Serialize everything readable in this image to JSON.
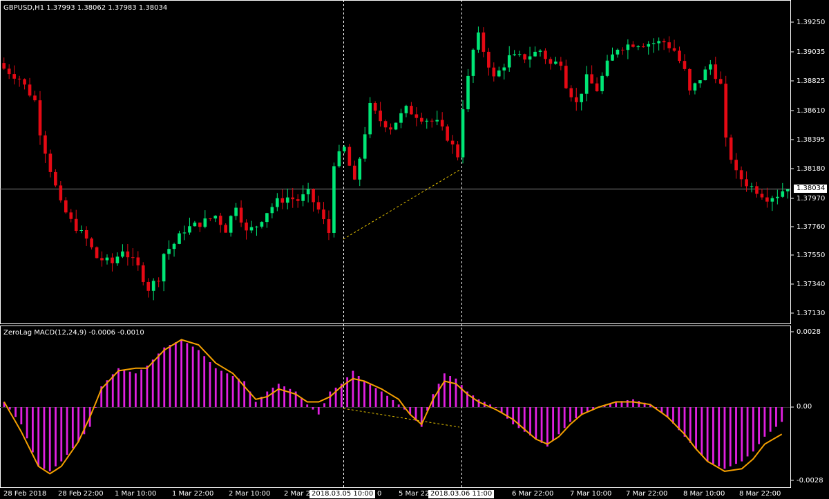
{
  "main_panel": {
    "symbol_label": "GBPUSD,H1  1.37993 1.38062 1.37983 1.38034",
    "current_price": "1.38034",
    "price_axis": [
      "1.39250",
      "1.39035",
      "1.38825",
      "1.38610",
      "1.38395",
      "1.38180",
      "1.37970",
      "1.37760",
      "1.37550",
      "1.37340",
      "1.37130"
    ]
  },
  "indicator_panel": {
    "label": "ZeroLag MACD(12,24,9) -0.0006 -0.0010",
    "axis": [
      "0.0028",
      "0.00",
      "-0.0028"
    ]
  },
  "time_axis": [
    "28 Feb 2018",
    "28 Feb 22:00",
    "1 Mar 10:00",
    "1 Mar 22:00",
    "2 Mar 10:00",
    "2 Mar 2",
    "5 Mar 22:00",
    "6 Mar 22:00",
    "7 Mar 10:00",
    "7 Mar 22:00",
    "8 Mar 10:00",
    "8 Mar 22:00"
  ],
  "time_axis_fragment": "0",
  "crosshair_labels": [
    "2018.03.05 10:00",
    "2018.03.06 11:00"
  ],
  "colors": {
    "background": "#000000",
    "bull_candle": "#00e676",
    "bear_candle": "#e50914",
    "histogram": "#e020e0",
    "signal_line": "#f5a000",
    "trendline": "#e5c100",
    "grid_line": "#ffffff"
  },
  "chart_data": [
    {
      "type": "candlestick",
      "title": "GBPUSD,H1",
      "ylim": [
        1.3705,
        1.3935
      ],
      "candle_count": 153,
      "close_path": [
        [
          0,
          1.3887
        ],
        [
          3,
          1.388
        ],
        [
          6,
          1.3864
        ],
        [
          7,
          1.3842
        ],
        [
          9,
          1.3815
        ],
        [
          11,
          1.379
        ],
        [
          13,
          1.3778
        ],
        [
          16,
          1.3765
        ],
        [
          18,
          1.3752
        ],
        [
          21,
          1.3748
        ],
        [
          23,
          1.3758
        ],
        [
          26,
          1.3745
        ],
        [
          28,
          1.373
        ],
        [
          30,
          1.3738
        ],
        [
          31,
          1.3755
        ],
        [
          33,
          1.3762
        ],
        [
          35,
          1.3772
        ],
        [
          37,
          1.3775
        ],
        [
          39,
          1.3778
        ],
        [
          41,
          1.3782
        ],
        [
          43,
          1.3772
        ],
        [
          45,
          1.379
        ],
        [
          47,
          1.377
        ],
        [
          49,
          1.3775
        ],
        [
          51,
          1.3785
        ],
        [
          53,
          1.3792
        ],
        [
          55,
          1.3795
        ],
        [
          57,
          1.3793
        ],
        [
          59,
          1.3798
        ],
        [
          61,
          1.3786
        ],
        [
          63,
          1.377
        ],
        [
          64,
          1.382
        ],
        [
          66,
          1.383
        ],
        [
          68,
          1.3805
        ],
        [
          71,
          1.386
        ],
        [
          73,
          1.385
        ],
        [
          75,
          1.3845
        ],
        [
          78,
          1.3858
        ],
        [
          81,
          1.3852
        ],
        [
          84,
          1.3848
        ],
        [
          86,
          1.3838
        ],
        [
          88,
          1.3825
        ],
        [
          89,
          1.386
        ],
        [
          91,
          1.39
        ],
        [
          92,
          1.391
        ],
        [
          93,
          1.39
        ],
        [
          95,
          1.388
        ],
        [
          98,
          1.3895
        ],
        [
          101,
          1.3895
        ],
        [
          104,
          1.39
        ],
        [
          106,
          1.389
        ],
        [
          108,
          1.3892
        ],
        [
          109,
          1.3876
        ],
        [
          111,
          1.3862
        ],
        [
          113,
          1.388
        ],
        [
          115,
          1.3872
        ],
        [
          117,
          1.389
        ],
        [
          119,
          1.3902
        ],
        [
          122,
          1.3905
        ],
        [
          125,
          1.3905
        ],
        [
          128,
          1.3906
        ],
        [
          130,
          1.39
        ],
        [
          132,
          1.3885
        ],
        [
          133,
          1.387
        ],
        [
          135,
          1.388
        ],
        [
          137,
          1.389
        ],
        [
          139,
          1.3875
        ],
        [
          140,
          1.3835
        ],
        [
          142,
          1.3812
        ],
        [
          144,
          1.3805
        ],
        [
          146,
          1.38
        ],
        [
          148,
          1.3795
        ],
        [
          150,
          1.3797
        ],
        [
          152,
          1.3803
        ]
      ],
      "trendline": {
        "from": [
          1.3767
        ],
        "to": [
          1.3813
        ],
        "style": "dotted"
      }
    },
    {
      "type": "bar",
      "title": "ZeroLag MACD(12,24,9)",
      "ylim": [
        -0.0028,
        0.0028
      ],
      "last_values": [
        -0.0006,
        -0.001
      ],
      "histogram_path": [
        [
          0,
          0.0002
        ],
        [
          3,
          -0.0007
        ],
        [
          6,
          -0.0024
        ],
        [
          8,
          -0.0026
        ],
        [
          10,
          -0.0022
        ],
        [
          13,
          -0.0014
        ],
        [
          15,
          -0.0008
        ],
        [
          17,
          0.0008
        ],
        [
          20,
          0.0015
        ],
        [
          23,
          0.0013
        ],
        [
          25,
          0.0016
        ],
        [
          28,
          0.0023
        ],
        [
          31,
          0.0026
        ],
        [
          34,
          0.0022
        ],
        [
          37,
          0.0015
        ],
        [
          40,
          0.0012
        ],
        [
          42,
          0.001
        ],
        [
          44,
          0.0002
        ],
        [
          46,
          0.0006
        ],
        [
          48,
          0.0009
        ],
        [
          51,
          0.0006
        ],
        [
          53,
          0.0001
        ],
        [
          55,
          -0.0003
        ],
        [
          57,
          0.0006
        ],
        [
          59,
          0.0009
        ],
        [
          61,
          0.0014
        ],
        [
          63,
          0.001
        ],
        [
          66,
          0.0006
        ],
        [
          69,
          0.0001
        ],
        [
          71,
          -0.0003
        ],
        [
          73,
          -0.0008
        ],
        [
          75,
          0.0005
        ],
        [
          77,
          0.0013
        ],
        [
          79,
          0.0011
        ],
        [
          81,
          0.0006
        ],
        [
          83,
          0.0003
        ],
        [
          86,
          0.0
        ],
        [
          89,
          -0.0007
        ],
        [
          91,
          -0.001
        ],
        [
          93,
          -0.0013
        ],
        [
          95,
          -0.0016
        ],
        [
          97,
          -0.0011
        ],
        [
          99,
          -0.0006
        ],
        [
          101,
          -0.0003
        ],
        [
          104,
          0.0
        ],
        [
          107,
          0.0002
        ],
        [
          110,
          0.0003
        ],
        [
          113,
          0.0001
        ],
        [
          116,
          -0.0004
        ],
        [
          119,
          -0.0012
        ],
        [
          121,
          -0.0017
        ],
        [
          123,
          -0.0022
        ],
        [
          126,
          -0.0025
        ],
        [
          129,
          -0.0022
        ],
        [
          131,
          -0.0018
        ],
        [
          133,
          -0.0012
        ],
        [
          136,
          -0.0006
        ]
      ],
      "signal_path": [
        [
          0,
          0.0002
        ],
        [
          3,
          -0.001
        ],
        [
          6,
          -0.0024
        ],
        [
          8,
          -0.0027
        ],
        [
          10,
          -0.0024
        ],
        [
          13,
          -0.0014
        ],
        [
          15,
          -0.0004
        ],
        [
          17,
          0.0007
        ],
        [
          20,
          0.0014
        ],
        [
          23,
          0.0015
        ],
        [
          25,
          0.0015
        ],
        [
          28,
          0.0022
        ],
        [
          31,
          0.0026
        ],
        [
          34,
          0.0024
        ],
        [
          37,
          0.0017
        ],
        [
          40,
          0.0013
        ],
        [
          42,
          0.0008
        ],
        [
          44,
          0.0003
        ],
        [
          46,
          0.0004
        ],
        [
          48,
          0.0007
        ],
        [
          51,
          0.0005
        ],
        [
          53,
          0.0002
        ],
        [
          55,
          0.0002
        ],
        [
          57,
          0.0004
        ],
        [
          59,
          0.0008
        ],
        [
          61,
          0.0011
        ],
        [
          63,
          0.001
        ],
        [
          66,
          0.0007
        ],
        [
          69,
          0.0003
        ],
        [
          71,
          -0.0003
        ],
        [
          73,
          -0.0007
        ],
        [
          75,
          0.0003
        ],
        [
          77,
          0.001
        ],
        [
          79,
          0.0009
        ],
        [
          81,
          0.0005
        ],
        [
          83,
          0.0002
        ],
        [
          86,
          -0.0001
        ],
        [
          89,
          -0.0005
        ],
        [
          91,
          -0.0009
        ],
        [
          93,
          -0.0013
        ],
        [
          95,
          -0.0015
        ],
        [
          97,
          -0.0012
        ],
        [
          99,
          -0.0007
        ],
        [
          101,
          -0.0003
        ],
        [
          104,
          0.0
        ],
        [
          107,
          0.0002
        ],
        [
          110,
          0.0002
        ],
        [
          113,
          0.0001
        ],
        [
          116,
          -0.0004
        ],
        [
          119,
          -0.0011
        ],
        [
          121,
          -0.0017
        ],
        [
          123,
          -0.0022
        ],
        [
          126,
          -0.0026
        ],
        [
          129,
          -0.0025
        ],
        [
          131,
          -0.0021
        ],
        [
          133,
          -0.0015
        ],
        [
          136,
          -0.0011
        ]
      ],
      "trendline": {
        "style": "dotted"
      }
    }
  ]
}
